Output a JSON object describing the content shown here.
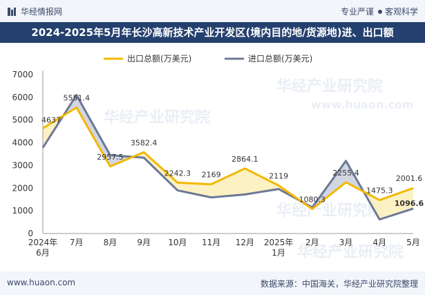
{
  "header": {
    "brand": "华经情报网",
    "tagline_left": "专业严谨",
    "tagline_right": "客观科学"
  },
  "title": "2024-2025年5月年长沙高新技术产业开发区(境内目的地/货源地)进、出口额",
  "footer": {
    "url": "www.huaon.com",
    "source": "数据来源：中国海关，华经产业研究院整理"
  },
  "watermarks": [
    "华经产业研究院",
    "www.huaon.com"
  ],
  "colors": {
    "export": "#f2b800",
    "import": "#6b7896",
    "export_fill": "#fbeeb8",
    "import_fill": "#c9cfdc"
  },
  "chart_data": {
    "type": "line",
    "categories": [
      "2024年6月",
      "7月",
      "8月",
      "9月",
      "10月",
      "11月",
      "12月",
      "2025年1月",
      "2月",
      "3月",
      "4月",
      "5月"
    ],
    "category_lines": [
      [
        "2024年",
        "6月"
      ],
      [
        "7月"
      ],
      [
        "8月"
      ],
      [
        "9月"
      ],
      [
        "10月"
      ],
      [
        "11月"
      ],
      [
        "12月"
      ],
      [
        "2025年",
        "1月"
      ],
      [
        "2月"
      ],
      [
        "3月"
      ],
      [
        "4月"
      ],
      [
        "5月"
      ]
    ],
    "series": [
      {
        "name": "出口总额(万美元)",
        "values": [
          4637,
          5551.4,
          2957.5,
          3582.4,
          2242.3,
          2169,
          2864.1,
          2119,
          1080.3,
          2255.4,
          1475.3,
          2001.6
        ],
        "labels": [
          "4637",
          "5551.4",
          "2957.5",
          "3582.4",
          "2242.3",
          "2169",
          "2864.1",
          "2119",
          "1080.3",
          "2255.4",
          "1475.3",
          "2001.6"
        ]
      },
      {
        "name": "进口总额(万美元)",
        "values": [
          3780,
          6100,
          3450,
          3340,
          1900,
          1590,
          1720,
          1960,
          1150,
          3200,
          620,
          1096.6
        ],
        "labels": [
          "",
          "",
          "",
          "",
          "",
          "",
          "",
          "",
          "",
          "",
          "",
          "1096.6"
        ]
      }
    ],
    "y_ticks": [
      0,
      1000,
      2000,
      3000,
      4000,
      5000,
      6000,
      7000
    ],
    "ylim": [
      0,
      7000
    ],
    "grid": false,
    "legend": "top-center"
  }
}
